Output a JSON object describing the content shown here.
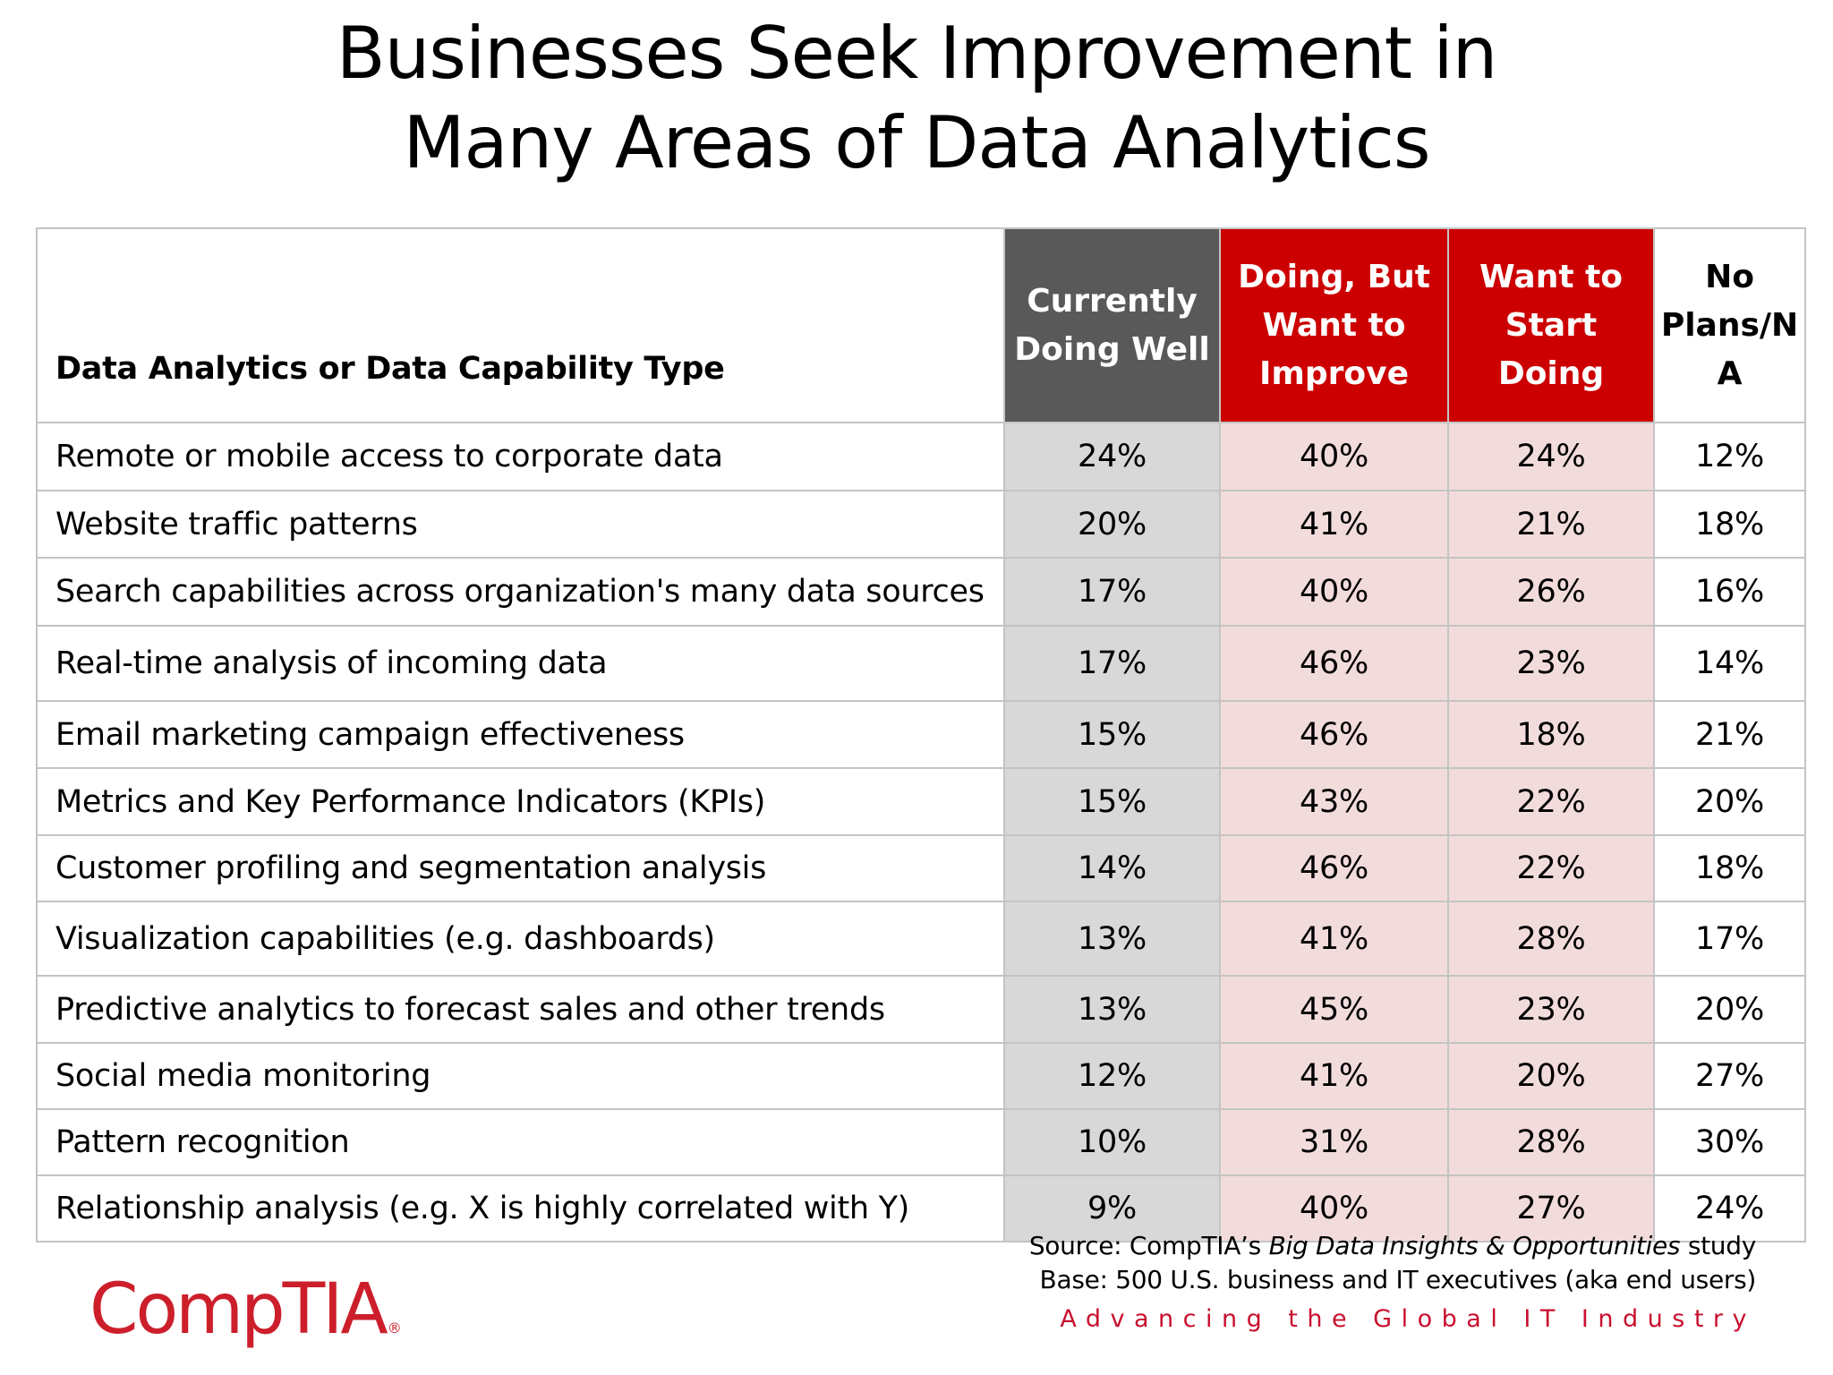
{
  "title": {
    "line1": "Businesses Seek Improvement in",
    "line2": "Many Areas of Data Analytics"
  },
  "table": {
    "columns": [
      {
        "label": "Data Analytics or Data Capability Type",
        "lines": [
          "Data Analytics or Data Capability Type"
        ]
      },
      {
        "label": "Currently Doing Well",
        "lines": [
          "Currently",
          "Doing Well"
        ],
        "color": "#595959"
      },
      {
        "label": "Doing, But Want to Improve",
        "lines": [
          "Doing, But",
          "Want to",
          "Improve"
        ],
        "color": "#cc0000"
      },
      {
        "label": "Want to Start Doing",
        "lines": [
          "Want to",
          "Start",
          "Doing"
        ],
        "color": "#cc0000"
      },
      {
        "label": "No Plans/NA",
        "lines": [
          "No",
          "Plans/N",
          "A"
        ]
      }
    ],
    "rows": [
      {
        "type": "Remote or mobile access to corporate data",
        "values": [
          "24%",
          "40%",
          "24%",
          "12%"
        ]
      },
      {
        "type": "Website traffic patterns",
        "values": [
          "20%",
          "41%",
          "21%",
          "18%"
        ]
      },
      {
        "type": "Search capabilities across organization's many data sources",
        "values": [
          "17%",
          "40%",
          "26%",
          "16%"
        ]
      },
      {
        "type": "Real-time analysis of incoming data",
        "values": [
          "17%",
          "46%",
          "23%",
          "14%"
        ]
      },
      {
        "type": "Email marketing campaign effectiveness",
        "values": [
          "15%",
          "46%",
          "18%",
          "21%"
        ]
      },
      {
        "type": "Metrics and Key Performance Indicators (KPIs)",
        "values": [
          "15%",
          "43%",
          "22%",
          "20%"
        ]
      },
      {
        "type": "Customer profiling and segmentation analysis",
        "values": [
          "14%",
          "46%",
          "22%",
          "18%"
        ]
      },
      {
        "type": "Visualization capabilities (e.g. dashboards)",
        "values": [
          "13%",
          "41%",
          "28%",
          "17%"
        ]
      },
      {
        "type": "Predictive analytics to forecast sales and other trends",
        "values": [
          "13%",
          "45%",
          "23%",
          "20%"
        ]
      },
      {
        "type": "Social media monitoring",
        "values": [
          "12%",
          "41%",
          "20%",
          "27%"
        ]
      },
      {
        "type": "Pattern recognition",
        "values": [
          "10%",
          "31%",
          "28%",
          "30%"
        ]
      },
      {
        "type": "Relationship analysis (e.g. X is highly correlated with Y)",
        "values": [
          "9%",
          "40%",
          "27%",
          "24%"
        ]
      }
    ]
  },
  "source": {
    "prefix": "Source: CompTIA’s ",
    "study": "Big Data Insights & Opportunities",
    "suffix": " study",
    "base": "Base: 500 U.S. business and IT executives (aka end users)"
  },
  "brand": {
    "logo": "CompTIA",
    "reg": "®",
    "tagline": "Advancing the Global IT Industry",
    "color": "#cc1f2b"
  }
}
